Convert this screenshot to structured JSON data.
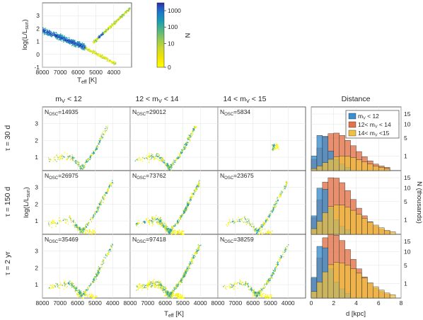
{
  "colors": {
    "cmap": [
      "#ffff00",
      "#f5e800",
      "#c8d82e",
      "#8cc85a",
      "#45b38c",
      "#1a9bb0",
      "#1b7cc8",
      "#2455c4",
      "#2e2a9a"
    ],
    "hist_bars": [
      "#3b8ed0",
      "#e2734a",
      "#f0c040"
    ]
  },
  "chart_data": [
    {
      "id": "overview",
      "type": "scatter",
      "description_source": "HR density of all stars (top-left inset)",
      "xlabel": "T",
      "xlabel_sub": "eff",
      "xlabel_unit": " [K]",
      "ylabel": "log(L/L",
      "ylabel_sub": "sun",
      "ylabel_end": ")",
      "xlim": [
        8000,
        3000
      ],
      "ylim": [
        -1,
        4
      ],
      "xticks": [
        8000,
        7000,
        6000,
        5000,
        4000
      ],
      "yticks": [
        -1,
        0,
        1,
        2,
        3
      ],
      "colorbar": {
        "label": "N",
        "ticks": [
          0,
          10,
          100,
          1000
        ],
        "tick_labels": [
          "0",
          "10",
          "100",
          "1000"
        ]
      }
    },
    {
      "id": "hr-grid",
      "type": "scatter",
      "column_titles": [
        {
          "pre": "m",
          "sub": "V",
          "post": " < 12"
        },
        {
          "pre": "12 < m",
          "sub": "V",
          "post": " < 14"
        },
        {
          "pre": "14 < m",
          "sub": "V",
          "post": " < 15"
        }
      ],
      "row_titles": [
        "τ = 30 d",
        "τ = 150 d",
        "τ = 2 yr"
      ],
      "nosc_prefix": "N",
      "nosc_sub": "OSC",
      "nosc": [
        [
          "=14935",
          "=29012",
          "=5834"
        ],
        [
          "=26975",
          "=73762",
          "=23675"
        ],
        [
          "=35469",
          "=97418",
          "=38259"
        ]
      ],
      "xlabel": "T",
      "xlabel_sub": "eff",
      "xlabel_unit": " [K]",
      "ylabel": "log(L/L",
      "ylabel_sub": "sun",
      "ylabel_end": ")",
      "xlim": [
        8000,
        3000
      ],
      "ylim": [
        0.2,
        4
      ],
      "xticks": [
        8000,
        7000,
        6000,
        5000,
        4000
      ],
      "yticks": [
        1,
        2,
        3
      ]
    },
    {
      "id": "distance",
      "type": "bar",
      "title": "Distance",
      "xlabel": "d [kpc]",
      "ylabel": "N (thousands)",
      "xlim": [
        0,
        8
      ],
      "xticks": [
        0,
        2,
        4,
        6,
        8
      ],
      "bin_edges": [
        0,
        0.5,
        1,
        1.5,
        2,
        2.5,
        3,
        3.5,
        4,
        4.5,
        5,
        5.5,
        6,
        6.5,
        7,
        7.5,
        8
      ],
      "yticks": [
        1,
        5,
        10,
        15
      ],
      "yscale": "sqrt",
      "ylim": [
        0,
        19
      ],
      "legend": {
        "placement": "top-right",
        "entries": [
          {
            "pre": "m",
            "sub": "V",
            "post": " < 12"
          },
          {
            "pre": "12< m",
            "sub": "V",
            "post": " < 14"
          },
          {
            "pre": "14< m",
            "sub": "V",
            "post": " <15"
          }
        ]
      },
      "rows": [
        {
          "tau": "τ = 30 d",
          "series": [
            {
              "name": "mV < 12",
              "values": [
                1.0,
                5.8,
                5.4,
                1.8,
                0.6,
                0.2,
                0.05,
                0,
                0,
                0,
                0,
                0,
                0,
                0,
                0,
                0
              ]
            },
            {
              "name": "12< mV < 14",
              "values": [
                0.6,
                2.4,
                5.5,
                6.4,
                6.6,
                5.8,
                4.3,
                2.9,
                1.7,
                0.9,
                0.45,
                0.2,
                0.1,
                0.05,
                0,
                0
              ]
            },
            {
              "name": "14< mV <15",
              "values": [
                0.02,
                0.1,
                0.3,
                0.6,
                0.9,
                1.0,
                0.95,
                0.8,
                0.55,
                0.35,
                0.2,
                0.1,
                0.05,
                0.02,
                0,
                0
              ]
            }
          ]
        },
        {
          "tau": "τ = 150 d",
          "series": [
            {
              "name": "mV < 12",
              "values": [
                1.6,
                10.0,
                9.5,
                3.2,
                1.0,
                0.3,
                0.1,
                0,
                0,
                0,
                0,
                0,
                0,
                0,
                0,
                0
              ]
            },
            {
              "name": "12< mV < 14",
              "values": [
                1.3,
                5.6,
                12.8,
                15.0,
                14.8,
                12.5,
                9.0,
                5.7,
                3.2,
                1.6,
                0.75,
                0.3,
                0.12,
                0.05,
                0,
                0
              ]
            },
            {
              "name": "14< mV <15",
              "values": [
                0.15,
                0.8,
                2.2,
                3.6,
                4.1,
                4.0,
                3.5,
                2.7,
                1.9,
                1.2,
                0.7,
                0.4,
                0.2,
                0.08,
                0.03,
                0
              ]
            }
          ]
        },
        {
          "tau": "τ = 2 yr",
          "series": [
            {
              "name": "mV < 12",
              "values": [
                2.0,
                12.5,
                11.8,
                4.0,
                1.2,
                0.4,
                0.1,
                0,
                0,
                0,
                0,
                0,
                0,
                0,
                0,
                0
              ]
            },
            {
              "name": "12< mV < 14",
              "values": [
                1.8,
                7.5,
                17.0,
                19.0,
                18.5,
                15.5,
                11.0,
                7.0,
                4.0,
                2.1,
                1.0,
                0.45,
                0.2,
                0.07,
                0,
                0
              ]
            },
            {
              "name": "14< mV <15",
              "values": [
                0.2,
                1.2,
                3.2,
                5.2,
                6.0,
                5.8,
                5.1,
                4.0,
                2.9,
                1.9,
                1.1,
                0.6,
                0.3,
                0.12,
                0.05,
                0
              ]
            }
          ]
        }
      ]
    }
  ]
}
